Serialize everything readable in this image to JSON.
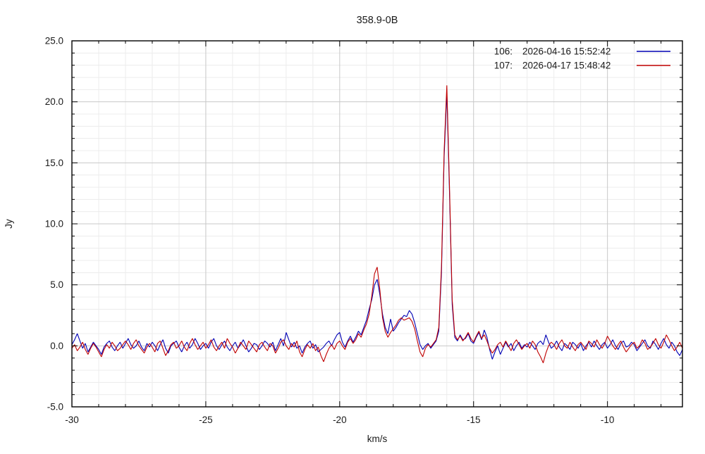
{
  "title": "358.9-0B",
  "axes": {
    "x_label": "km/s",
    "y_label": "Jy",
    "x_tick_labels": [
      "-30",
      "-25",
      "-20",
      "-15",
      "-10"
    ],
    "y_tick_labels": [
      "-5.0",
      "0.0",
      "5.0",
      "10.0",
      "15.0",
      "20.0",
      "25.0"
    ]
  },
  "legend": {
    "entries": [
      {
        "id_label": "106:",
        "timestamp": "2026-04-16 15:52:42",
        "color": "#0000b4"
      },
      {
        "id_label": "107:",
        "timestamp": "2026-04-17 15:48:42",
        "color": "#c00000"
      }
    ]
  },
  "colors": {
    "series_blue": "#0000b4",
    "series_red": "#c00000",
    "border": "#000000",
    "grid_minor": "#ececec",
    "grid_major": "#c8c8c8",
    "background": "#ffffff"
  },
  "chart_data": {
    "type": "line",
    "title": "358.9-0B",
    "xlabel": "km/s",
    "ylabel": "Jy",
    "xlim": [
      -30,
      -7.2
    ],
    "ylim": [
      -5,
      25
    ],
    "x_major_ticks": [
      -30,
      -25,
      -20,
      -15,
      -10
    ],
    "x_minor_step": 1,
    "y_major_ticks": [
      -5,
      0,
      5,
      10,
      15,
      20,
      25
    ],
    "y_minor_step": 1,
    "grid": "minor and major gridlines on",
    "legend_position": "top-right inside plot",
    "notable_features": {
      "main_peak": {
        "x_kms": -16.05,
        "red_Jy": 21.4,
        "blue_Jy": 20.8
      },
      "secondary_peak": {
        "x_kms": -18.65,
        "red_Jy": 6.4,
        "blue_Jy": 5.4
      },
      "broad_bump": {
        "x_kms": -17.4,
        "blue_Jy": 2.9,
        "red_Jy": 2.3
      },
      "baseline_noise_Jy": 0.6
    },
    "x_start": -30.0,
    "x_step": 0.1,
    "series": [
      {
        "name": "106: 2026-04-16 15:52:42",
        "color": "#0000b4",
        "values": [
          0.1,
          0.5,
          1.0,
          0.4,
          -0.2,
          0.2,
          -0.5,
          -0.1,
          0.3,
          0.0,
          -0.3,
          -0.7,
          -0.1,
          0.2,
          0.4,
          -0.1,
          -0.4,
          0.0,
          0.3,
          -0.2,
          0.2,
          0.6,
          0.1,
          -0.2,
          0.0,
          0.4,
          -0.1,
          -0.4,
          0.2,
          -0.1,
          0.3,
          0.0,
          -0.4,
          0.1,
          0.5,
          -0.2,
          -0.6,
          0.0,
          0.2,
          0.4,
          -0.1,
          -0.5,
          0.0,
          0.3,
          -0.2,
          0.1,
          0.6,
          0.2,
          -0.3,
          0.0,
          0.2,
          -0.2,
          0.3,
          0.6,
          0.0,
          -0.3,
          0.1,
          0.4,
          -0.1,
          -0.4,
          0.0,
          0.3,
          -0.2,
          0.1,
          0.5,
          0.0,
          -0.5,
          -0.2,
          0.2,
          0.1,
          -0.3,
          0.0,
          0.4,
          0.2,
          -0.1,
          0.3,
          -0.4,
          0.1,
          0.6,
          0.0,
          1.1,
          0.5,
          -0.1,
          0.3,
          -0.2,
          0.0,
          -0.6,
          -0.1,
          0.2,
          0.4,
          -0.2,
          0.1,
          -0.5,
          -0.3,
          -0.1,
          0.2,
          0.4,
          0.0,
          0.5,
          0.9,
          1.1,
          0.3,
          -0.1,
          0.4,
          0.8,
          0.3,
          0.7,
          1.2,
          0.9,
          1.5,
          2.1,
          3.0,
          3.8,
          5.0,
          5.45,
          4.2,
          2.6,
          1.5,
          1.0,
          2.2,
          1.2,
          1.5,
          1.9,
          2.2,
          2.5,
          2.4,
          2.9,
          2.6,
          1.9,
          1.0,
          0.1,
          -0.3,
          0.0,
          0.2,
          -0.2,
          0.1,
          0.4,
          1.2,
          6.0,
          15.5,
          20.8,
          12.5,
          3.4,
          0.7,
          0.4,
          0.9,
          0.5,
          0.6,
          1.0,
          0.4,
          0.2,
          0.7,
          1.1,
          0.5,
          1.3,
          0.7,
          -0.3,
          -1.1,
          -0.5,
          0.0,
          -0.7,
          -0.2,
          0.3,
          -0.1,
          0.2,
          -0.4,
          0.0,
          0.3,
          -0.2,
          0.1,
          -0.1,
          0.3,
          0.0,
          -0.3,
          0.2,
          0.4,
          0.1,
          0.9,
          0.3,
          -0.2,
          0.0,
          0.4,
          -0.1,
          -0.4,
          0.2,
          0.0,
          -0.3,
          0.3,
          0.1,
          -0.2,
          0.2,
          -0.4,
          0.0,
          0.3,
          -0.1,
          0.4,
          0.0,
          -0.3,
          0.1,
          0.3,
          -0.2,
          0.1,
          0.5,
          0.0,
          -0.3,
          0.2,
          0.4,
          -0.1,
          0.0,
          0.3,
          0.1,
          -0.4,
          -0.1,
          0.2,
          0.5,
          0.0,
          -0.2,
          0.4,
          0.1,
          -0.3,
          0.2,
          0.6,
          0.1,
          -0.2,
          0.3,
          0.0,
          -0.5,
          -0.8,
          -0.3
        ]
      },
      {
        "name": "107: 2026-04-17 15:48:42",
        "color": "#c00000",
        "values": [
          -0.2,
          0.1,
          -0.4,
          -0.1,
          0.3,
          -0.3,
          -0.7,
          -0.2,
          0.2,
          -0.1,
          -0.5,
          -0.9,
          -0.3,
          0.1,
          -0.2,
          0.3,
          0.0,
          -0.4,
          -0.2,
          0.1,
          0.4,
          0.1,
          -0.3,
          0.2,
          0.5,
          0.0,
          -0.3,
          -0.6,
          -0.1,
          0.2,
          -0.1,
          -0.5,
          0.2,
          0.4,
          -0.2,
          -0.8,
          -0.4,
          0.1,
          0.3,
          -0.2,
          0.0,
          0.4,
          -0.1,
          -0.4,
          0.2,
          0.6,
          0.1,
          -0.3,
          0.0,
          0.3,
          -0.2,
          0.1,
          0.5,
          -0.1,
          -0.4,
          0.0,
          0.3,
          -0.2,
          0.6,
          0.2,
          -0.1,
          -0.6,
          -0.2,
          0.3,
          0.0,
          -0.3,
          0.4,
          0.1,
          -0.2,
          -0.5,
          0.1,
          0.3,
          -0.1,
          -0.4,
          0.2,
          0.0,
          -0.6,
          -0.2,
          0.3,
          0.5,
          0.0,
          -0.3,
          0.2,
          -0.1,
          0.4,
          -0.5,
          -0.9,
          -0.3,
          0.1,
          -0.2,
          0.2,
          -0.4,
          -0.1,
          -0.8,
          -1.3,
          -0.7,
          -0.2,
          0.1,
          -0.3,
          0.2,
          0.4,
          0.0,
          -0.3,
          0.3,
          0.6,
          0.2,
          0.5,
          1.0,
          0.7,
          1.3,
          1.8,
          2.6,
          4.1,
          5.9,
          6.45,
          4.6,
          2.3,
          1.2,
          0.7,
          1.1,
          1.4,
          1.7,
          2.1,
          2.3,
          2.1,
          2.2,
          2.3,
          2.0,
          1.4,
          0.4,
          -0.5,
          -0.9,
          -0.2,
          0.1,
          -0.1,
          0.2,
          0.5,
          1.5,
          6.5,
          16.0,
          21.35,
          13.0,
          3.8,
          0.9,
          0.5,
          0.8,
          0.4,
          0.7,
          1.1,
          0.6,
          0.3,
          0.8,
          1.2,
          0.6,
          0.9,
          0.4,
          -0.2,
          -0.6,
          -0.3,
          0.1,
          0.3,
          -0.1,
          0.4,
          0.0,
          -0.4,
          0.2,
          0.5,
          0.1,
          -0.3,
          0.0,
          0.2,
          -0.2,
          0.4,
          0.1,
          -0.5,
          -0.9,
          -1.4,
          -0.6,
          0.0,
          0.3,
          0.1,
          -0.3,
          0.2,
          0.5,
          0.0,
          -0.2,
          0.3,
          -0.1,
          -0.4,
          0.1,
          0.3,
          0.0,
          -0.3,
          0.4,
          0.2,
          -0.1,
          0.5,
          0.1,
          -0.2,
          0.2,
          0.8,
          0.4,
          0.0,
          -0.3,
          0.1,
          0.4,
          -0.1,
          -0.5,
          -0.2,
          0.1,
          0.3,
          -0.2,
          0.0,
          0.5,
          0.2,
          -0.3,
          -0.1,
          0.2,
          0.6,
          0.1,
          -0.2,
          0.3,
          0.9,
          0.5,
          0.0,
          -0.4,
          -0.1,
          0.3,
          -0.2
        ]
      }
    ]
  }
}
